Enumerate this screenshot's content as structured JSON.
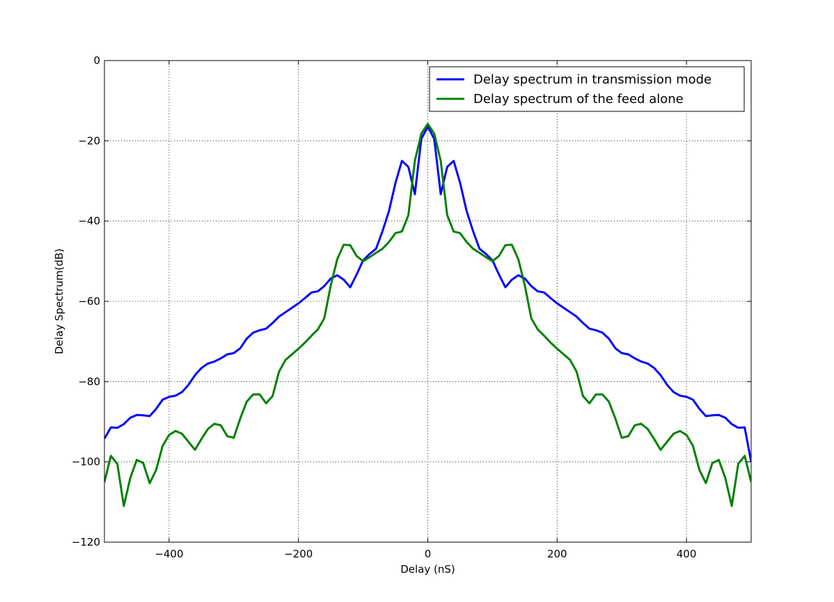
{
  "chart_data": {
    "type": "line",
    "xlabel": "Delay (nS)",
    "ylabel": "Delay Spectrum(dB)",
    "x": [
      -500,
      -490,
      -480,
      -470,
      -460,
      -450,
      -440,
      -430,
      -420,
      -410,
      -400,
      -390,
      -380,
      -370,
      -360,
      -350,
      -340,
      -330,
      -320,
      -310,
      -300,
      -290,
      -280,
      -270,
      -260,
      -250,
      -240,
      -230,
      -220,
      -210,
      -200,
      -190,
      -180,
      -170,
      -160,
      -150,
      -140,
      -130,
      -120,
      -110,
      -100,
      -90,
      -80,
      -70,
      -60,
      -50,
      -40,
      -30,
      -20,
      -10,
      0,
      10,
      20,
      30,
      40,
      50,
      60,
      70,
      80,
      90,
      100,
      110,
      120,
      130,
      140,
      150,
      160,
      170,
      180,
      190,
      200,
      210,
      220,
      230,
      240,
      250,
      260,
      270,
      280,
      290,
      300,
      310,
      320,
      330,
      340,
      350,
      360,
      370,
      380,
      390,
      400,
      410,
      420,
      430,
      440,
      450,
      460,
      470,
      480,
      490,
      500
    ],
    "series": [
      {
        "name": "Delay spectrum in transmission mode",
        "color": "#0000ff",
        "values": [
          -94.2,
          -91.4,
          -91.5,
          -90.6,
          -89,
          -88.3,
          -88.4,
          -88.6,
          -86.8,
          -84.5,
          -83.8,
          -83.5,
          -82.6,
          -80.8,
          -78.4,
          -76.6,
          -75.5,
          -75,
          -74.2,
          -73.2,
          -72.9,
          -71.7,
          -69.3,
          -67.8,
          -67.2,
          -66.8,
          -65.4,
          -63.8,
          -62.7,
          -61.6,
          -60.5,
          -59.2,
          -57.8,
          -57.5,
          -56.2,
          -54.3,
          -53.5,
          -54.6,
          -56.5,
          -53.3,
          -49.8,
          -48.2,
          -46.9,
          -42.5,
          -37.5,
          -30.5,
          -25,
          -26.5,
          -33.3,
          -19.5,
          -16.5,
          -19.5,
          -33.3,
          -26.5,
          -25,
          -30.5,
          -37.5,
          -42.5,
          -46.9,
          -48.2,
          -49.8,
          -53.3,
          -56.5,
          -54.6,
          -53.5,
          -54.3,
          -56.2,
          -57.5,
          -57.8,
          -59.2,
          -60.5,
          -61.6,
          -62.7,
          -63.8,
          -65.4,
          -66.8,
          -67.2,
          -67.8,
          -69.3,
          -71.7,
          -72.9,
          -73.2,
          -74.2,
          -75,
          -75.5,
          -76.6,
          -78.4,
          -80.8,
          -82.6,
          -83.5,
          -83.8,
          -84.5,
          -86.8,
          -88.6,
          -88.4,
          -88.3,
          -89,
          -90.6,
          -91.5,
          -91.4,
          -100
        ]
      },
      {
        "name": "Delay spectrum of the feed alone",
        "color": "#008000",
        "values": [
          -105,
          -98.5,
          -100.5,
          -111,
          -104,
          -99.5,
          -100.3,
          -105.3,
          -102,
          -96,
          -93.3,
          -92.3,
          -93,
          -95,
          -97,
          -94.3,
          -91.8,
          -90.5,
          -90.9,
          -93.6,
          -94,
          -89.2,
          -85,
          -83.2,
          -83.2,
          -85.4,
          -83.6,
          -77.5,
          -74.6,
          -73.2,
          -71.8,
          -70.3,
          -68.6,
          -67,
          -64.2,
          -56,
          -49.5,
          -45.9,
          -46,
          -48.7,
          -50,
          -49,
          -47.9,
          -46.9,
          -45.2,
          -43,
          -42.6,
          -38.5,
          -25,
          -18.2,
          -15.8,
          -18.2,
          -25,
          -38.5,
          -42.6,
          -43,
          -45.2,
          -46.9,
          -47.9,
          -49,
          -50,
          -48.7,
          -46,
          -45.9,
          -49.5,
          -56,
          -64.2,
          -67,
          -68.6,
          -70.3,
          -71.8,
          -73.2,
          -74.6,
          -77.5,
          -83.6,
          -85.4,
          -83.2,
          -83.2,
          -85,
          -89.2,
          -94,
          -93.6,
          -90.9,
          -90.5,
          -91.8,
          -94.3,
          -97,
          -95,
          -93,
          -92.3,
          -93.3,
          -96,
          -102,
          -105.3,
          -100.3,
          -99.5,
          -104,
          -111,
          -100.5,
          -98.5,
          -105
        ]
      }
    ],
    "xlim": [
      -500,
      500
    ],
    "ylim": [
      -120,
      0
    ],
    "xticks": [
      {
        "value": -400,
        "label": "−400"
      },
      {
        "value": -200,
        "label": "−200"
      },
      0,
      200,
      400
    ],
    "yticks": [
      {
        "value": -120,
        "label": "−120"
      },
      {
        "value": -100,
        "label": "−100"
      },
      {
        "value": -80,
        "label": "−80"
      },
      {
        "value": -60,
        "label": "−60"
      },
      {
        "value": -40,
        "label": "−40"
      },
      {
        "value": -20,
        "label": "−20"
      },
      0
    ],
    "grid": true,
    "legend": "upper right"
  }
}
